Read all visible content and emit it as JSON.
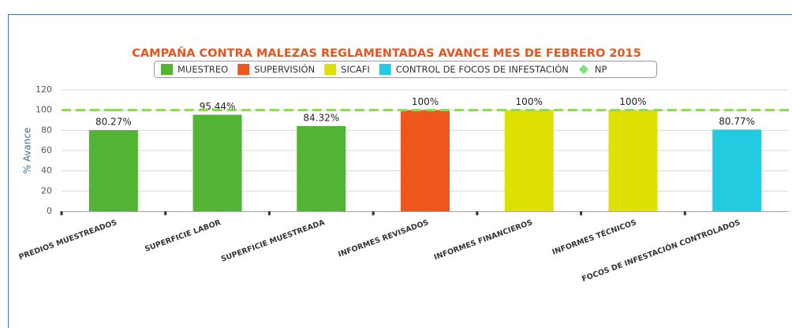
{
  "chart_data": {
    "type": "bar",
    "title": "CAMPAÑA CONTRA MALEZAS REGLAMENTADAS AVANCE MES DE FEBRERO 2015",
    "y_label": "% Avance",
    "categories": [
      "PREDIOS MUESTREADOS",
      "SUPERFICIE LABOR",
      "SUPERFICIE MUESTREADA",
      "INFORMES REVISADOS",
      "INFORMES FINANCIEROS",
      "INFORMES TÉCNICOS",
      "FOCOS DE INFESTACIÓN CONTROLADOS"
    ],
    "series": [
      {
        "name": "MUESTREO",
        "color": "#52b335",
        "values": [
          80.27,
          95.44,
          84.32,
          null,
          null,
          null,
          null
        ],
        "value_labels": [
          "80.27%",
          "95.44%",
          "84.32%",
          null,
          null,
          null,
          null
        ]
      },
      {
        "name": "SUPERVISIÓN",
        "color": "#ee561b",
        "values": [
          null,
          null,
          null,
          100,
          null,
          null,
          null
        ],
        "value_labels": [
          null,
          null,
          null,
          "100%",
          null,
          null,
          null
        ]
      },
      {
        "name": "SICAFI",
        "color": "#dde000",
        "values": [
          null,
          null,
          null,
          null,
          100,
          100,
          null
        ],
        "value_labels": [
          null,
          null,
          null,
          null,
          "100%",
          "100%",
          null
        ]
      },
      {
        "name": "CONTROL DE FOCOS DE INFESTACIÓN",
        "color": "#22cbe0",
        "values": [
          null,
          null,
          null,
          null,
          null,
          null,
          80.77
        ],
        "value_labels": [
          null,
          null,
          null,
          null,
          null,
          null,
          "80.77%"
        ]
      },
      {
        "name": "NP",
        "color": "#8fd65a",
        "type": "line",
        "values": [
          100,
          100,
          100,
          100,
          100,
          100,
          100
        ]
      }
    ],
    "ylim": [
      0,
      120
    ],
    "yticks": [
      0,
      20,
      40,
      60,
      80,
      100,
      120
    ],
    "grid": true
  }
}
